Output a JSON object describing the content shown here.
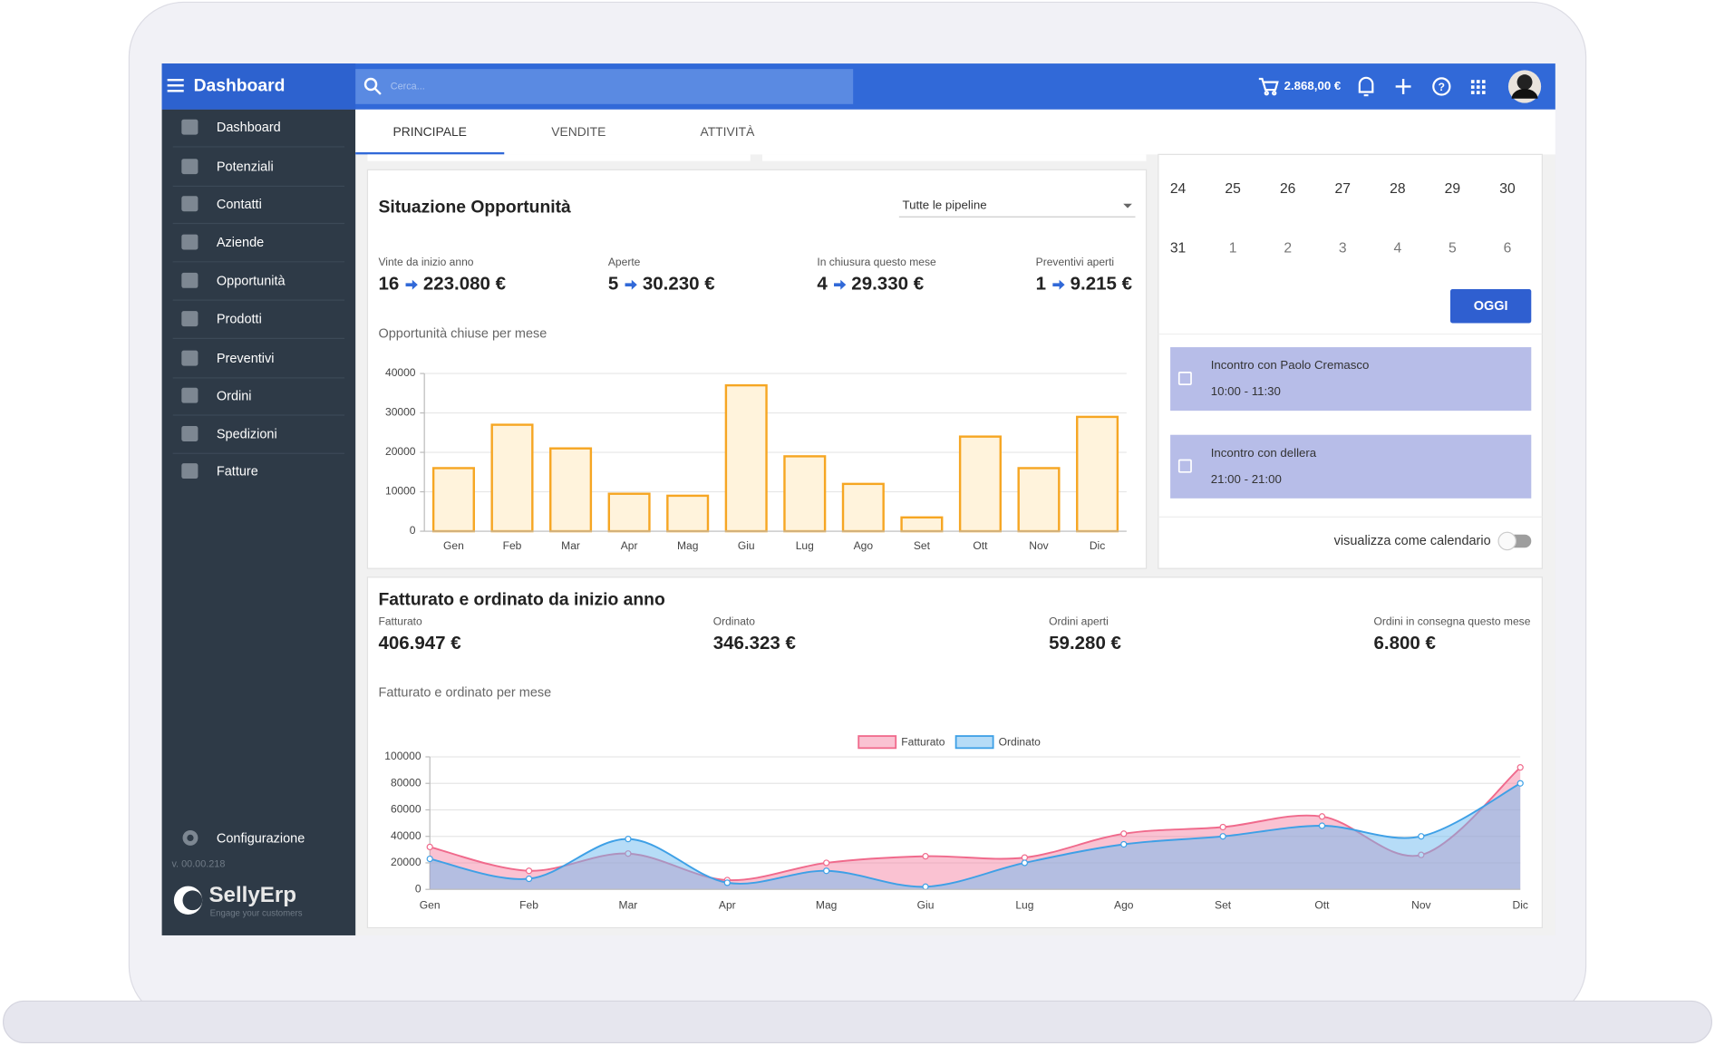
{
  "header": {
    "title": "Dashboard",
    "search_placeholder": "Cerca...",
    "cart_total": "2.868,00 €"
  },
  "sidebar": {
    "menu": [
      "Dashboard",
      "Potenziali",
      "Contatti",
      "Aziende",
      "Opportunità",
      "Prodotti",
      "Preventivi",
      "Ordini",
      "Spedizioni",
      "Fatture"
    ],
    "settings": "Configurazione",
    "version": "v. 00.00.218",
    "logo": "SellyErp",
    "tagline": "Engage your customers"
  },
  "tabs": [
    "PRINCIPALE",
    "VENDITE",
    "ATTIVITÀ"
  ],
  "opportunities": {
    "title": "Situazione Opportunità",
    "filter": "Tutte le pipeline",
    "kpis": [
      {
        "label": "Vinte da inizio anno",
        "count": "16",
        "amount": "223.080 €"
      },
      {
        "label": "Aperte",
        "count": "5",
        "amount": "30.230 €"
      },
      {
        "label": "In chiusura questo mese",
        "count": "4",
        "amount": "29.330 €"
      },
      {
        "label": "Preventivi aperti",
        "count": "1",
        "amount": "9.215 €"
      }
    ]
  },
  "calendar": {
    "weeks": [
      [
        24,
        25,
        26,
        27,
        28,
        29,
        30
      ],
      [
        31,
        1,
        2,
        3,
        4,
        5,
        6
      ]
    ],
    "today_button": "OGGI",
    "events": [
      {
        "title": "Incontro con Paolo Cremasco",
        "time": "10:00 - 11:30"
      },
      {
        "title": "Incontro con dellera",
        "time": "21:00 - 21:00"
      }
    ],
    "toggle_label": "visualizza come calendario"
  },
  "revenue": {
    "title": "Fatturato e ordinato da inizio anno",
    "kpis": [
      {
        "label": "Fatturato",
        "value": "406.947 €"
      },
      {
        "label": "Ordinato",
        "value": "346.323 €"
      },
      {
        "label": "Ordini aperti",
        "value": "59.280 €"
      },
      {
        "label": "Ordini in consegna questo mese",
        "value": "6.800 €"
      }
    ]
  },
  "chart_data": [
    {
      "type": "bar",
      "title": "Opportunità chiuse per mese",
      "categories": [
        "Gen",
        "Feb",
        "Mar",
        "Apr",
        "Mag",
        "Giu",
        "Lug",
        "Ago",
        "Set",
        "Ott",
        "Nov",
        "Dic"
      ],
      "values": [
        16000,
        27000,
        21000,
        9500,
        9000,
        37000,
        19000,
        12000,
        3500,
        24000,
        16000,
        29000
      ],
      "color": "#f6a623",
      "ylim": [
        0,
        40000
      ],
      "yticks": [
        0,
        10000,
        20000,
        30000,
        40000
      ],
      "grid": true
    },
    {
      "type": "line",
      "title": "Fatturato e ordinato per mese",
      "categories": [
        "Gen",
        "Feb",
        "Mar",
        "Apr",
        "Mag",
        "Giu",
        "Lug",
        "Ago",
        "Set",
        "Ott",
        "Nov",
        "Dic"
      ],
      "series": [
        {
          "name": "Fatturato",
          "color": "#f06a8c",
          "values": [
            32000,
            14000,
            27000,
            7000,
            20000,
            25000,
            24000,
            42000,
            47000,
            55000,
            26000,
            92000
          ]
        },
        {
          "name": "Ordinato",
          "color": "#3ea0e6",
          "values": [
            23000,
            8000,
            38000,
            5000,
            14000,
            2000,
            20000,
            34000,
            40000,
            48000,
            40000,
            80000
          ]
        }
      ],
      "ylim": [
        0,
        100000
      ],
      "yticks": [
        0,
        20000,
        40000,
        60000,
        80000,
        100000
      ],
      "grid": true,
      "legend": "top"
    }
  ]
}
